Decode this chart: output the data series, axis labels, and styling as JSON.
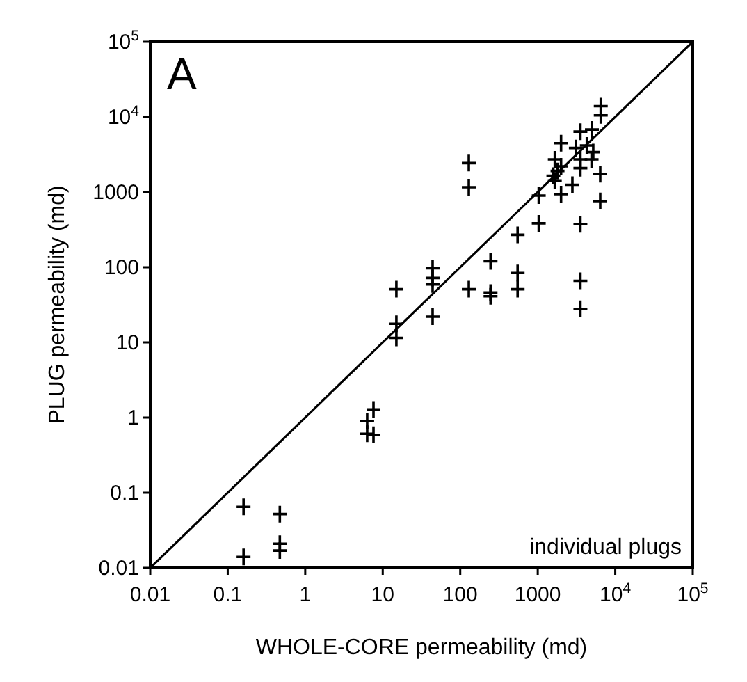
{
  "chart_data": {
    "type": "scatter",
    "xlabel": "WHOLE-CORE permeability (md)",
    "ylabel": "PLUG permeability (md)",
    "log": "xy",
    "xlim": [
      0.01,
      100000
    ],
    "ylim": [
      0.01,
      100000
    ],
    "xticks": [
      0.01,
      0.1,
      1,
      10,
      100,
      1000,
      {
        "value": 10000,
        "label": "10$^{4}$"
      },
      {
        "value": 100000,
        "label": "10$^{5}$"
      }
    ],
    "yticks": [
      0.01,
      0.1,
      1,
      10,
      100,
      1000,
      {
        "value": 10000,
        "label": "10$^{4}$"
      },
      {
        "value": 100000,
        "label": "10$^{5}$"
      }
    ],
    "grid": false,
    "marker": "cross",
    "annotations": [
      "A",
      "individual plugs"
    ],
    "series": [
      {
        "color": "#000000",
        "x": [
          0.16,
          0.16,
          0.47,
          0.47,
          0.47,
          6.3,
          7.6,
          6.3,
          7.6,
          15,
          15,
          15,
          44,
          44,
          44,
          44,
          129,
          129,
          129,
          246,
          246,
          246,
          550,
          550,
          550,
          1030,
          1030,
          3550,
          3550,
          3550,
          6400,
          6400,
          6500,
          6500,
          3550,
          5000,
          2000,
          3100,
          4300,
          5200,
          1660,
          3550,
          1800,
          2000,
          1590,
          3550,
          2800,
          2000,
          1660,
          4950
        ],
        "values": [
          0.065,
          0.014,
          0.052,
          0.021,
          0.017,
          0.9,
          1.28,
          0.61,
          0.59,
          51,
          17.7,
          11.5,
          97,
          72,
          59,
          22,
          2430,
          1160,
          51,
          120,
          46,
          41,
          270,
          84,
          51,
          900,
          384,
          374,
          66,
          28,
          1730,
          760,
          13900,
          10500,
          6370,
          6800,
          4470,
          3860,
          4170,
          3400,
          2720,
          2720,
          1910,
          2200,
          1650,
          2080,
          1250,
          940,
          1430,
          2720
        ]
      },
      {
        "type": "line",
        "color": "#000000",
        "marker": "none",
        "line_style": "solid",
        "x": [
          0.01,
          100000
        ],
        "values": [
          0.01,
          100000
        ]
      }
    ]
  }
}
